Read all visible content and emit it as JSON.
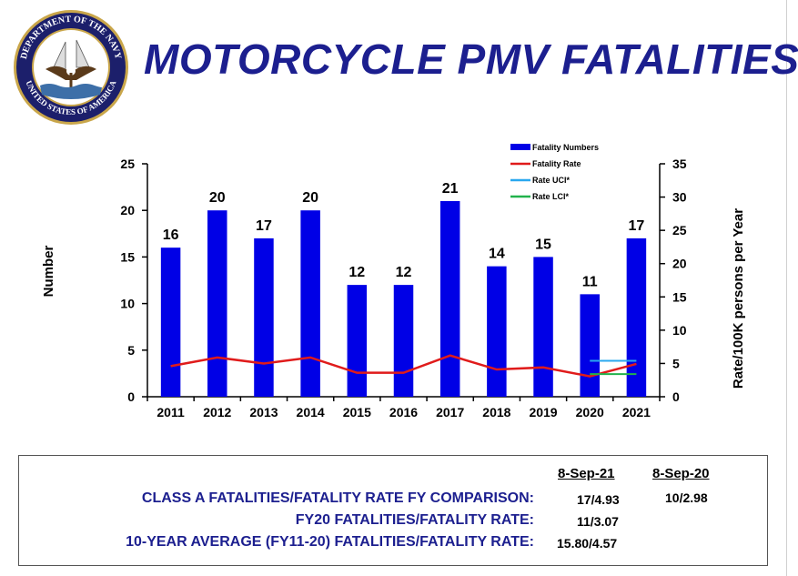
{
  "header": {
    "title": "MOTORCYCLE PMV FATALITIES",
    "seal_text_top": "DEPARTMENT OF THE NAVY",
    "seal_text_bottom": "UNITED STATES OF AMERICA"
  },
  "chart_data": {
    "type": "bar",
    "categories": [
      "2011",
      "2012",
      "2013",
      "2014",
      "2015",
      "2016",
      "2017",
      "2018",
      "2019",
      "2020",
      "2021"
    ],
    "series": [
      {
        "name": "Fatality Numbers",
        "type": "bar",
        "axis": "left",
        "color": "#0000e6",
        "values": [
          16,
          20,
          17,
          20,
          12,
          12,
          21,
          14,
          15,
          11,
          17
        ]
      },
      {
        "name": "Fatality Rate",
        "type": "line",
        "axis": "right",
        "color": "#e01b1b",
        "values": [
          4.6,
          5.9,
          5.0,
          5.9,
          3.6,
          3.6,
          6.2,
          4.1,
          4.4,
          3.07,
          4.93
        ]
      },
      {
        "name": "Rate UCI*",
        "type": "line",
        "axis": "right",
        "color": "#2aa8ef",
        "x": [
          "2020",
          "2021"
        ],
        "values": [
          5.4,
          5.4
        ]
      },
      {
        "name": "Rate LCI*",
        "type": "line",
        "axis": "right",
        "color": "#22b24c",
        "x": [
          "2020",
          "2021"
        ],
        "values": [
          3.4,
          3.4
        ]
      }
    ],
    "ylabel": "Number",
    "y2label": "Rate/100K persons per Year",
    "ylim": [
      0,
      25
    ],
    "y2lim": [
      0,
      35
    ],
    "yticks": [
      "0",
      "5",
      "10",
      "15",
      "20",
      "25"
    ],
    "y2ticks": [
      "0",
      "5",
      "10",
      "15",
      "20",
      "25",
      "30",
      "35"
    ],
    "grid": false,
    "legend_position": "top-right"
  },
  "comparison_table": {
    "col1_header": "8-Sep-21",
    "col2_header": "8-Sep-20",
    "rows": [
      {
        "label": "CLASS A FATALITIES/FATALITY RATE FY COMPARISON:",
        "col1": "17/4.93",
        "col2": "10/2.98"
      },
      {
        "label": "FY20 FATALITIES/FATALITY RATE:",
        "col1": "11/3.07",
        "col2": ""
      },
      {
        "label": "10-YEAR AVERAGE (FY11-20) FATALITIES/FATALITY RATE:",
        "col1": "15.80/4.57",
        "col2": ""
      }
    ]
  }
}
